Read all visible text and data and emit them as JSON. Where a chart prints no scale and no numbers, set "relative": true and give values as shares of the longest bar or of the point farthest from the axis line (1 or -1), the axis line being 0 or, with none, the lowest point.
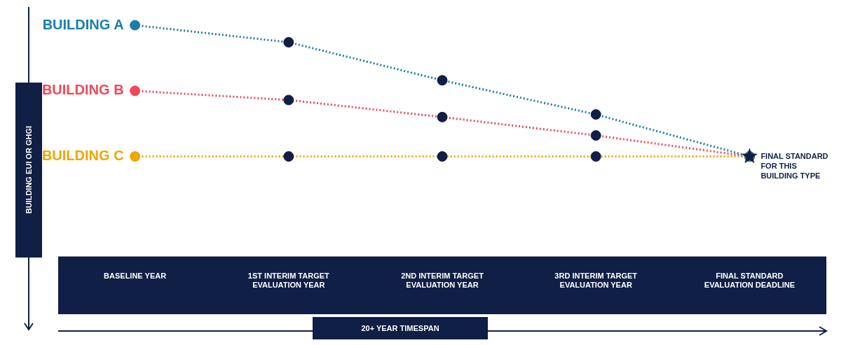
{
  "chart_data": {
    "type": "line",
    "relative": true,
    "xlabel": "20+ YEAR TIMESPAN",
    "ylabel": "BUILDING EUI OR GHGI",
    "categories": [
      "BASELINE YEAR",
      "1ST INTERIM TARGET EVALUATION YEAR",
      "2ND INTERIM TARGET EVALUATION YEAR",
      "3RD INTERIM TARGET EVALUATION YEAR",
      "FINAL STANDARD EVALUATION DEADLINE"
    ],
    "series": [
      {
        "name": "BUILDING A",
        "color": "#1a7fa8",
        "colors": [
          "#1a7fa8",
          "#0f1f45",
          "#0f1f45",
          "#0f1f45",
          null
        ],
        "values": [
          1,
          0.87,
          0.58,
          0.32,
          0
        ]
      },
      {
        "name": "BUILDING B",
        "color": "#f0495a",
        "colors": [
          "#f0495a",
          "#0f1f45",
          "#0f1f45",
          "#0f1f45",
          null
        ],
        "values": [
          0.5,
          0.43,
          0.3,
          0.16,
          0
        ]
      },
      {
        "name": "BUILDING C",
        "color": "#f0a500",
        "colors": [
          "#f0a500",
          "#0f1f45",
          "#0f1f45",
          "#0f1f45",
          null
        ],
        "values": [
          0,
          0,
          0,
          0,
          0
        ]
      },
      {
        "type": "scatter",
        "marker": "star",
        "color": "#0f1f45",
        "values": [
          null,
          null,
          null,
          null,
          0
        ]
      }
    ],
    "annotations": [
      {
        "text": "FINAL STANDARD FOR THIS BUILDING TYPE",
        "x": "FINAL STANDARD EVALUATION DEADLINE",
        "y": 0
      }
    ],
    "marker": "circle",
    "line_style": "dotted",
    "legend": false,
    "grid": false
  }
}
